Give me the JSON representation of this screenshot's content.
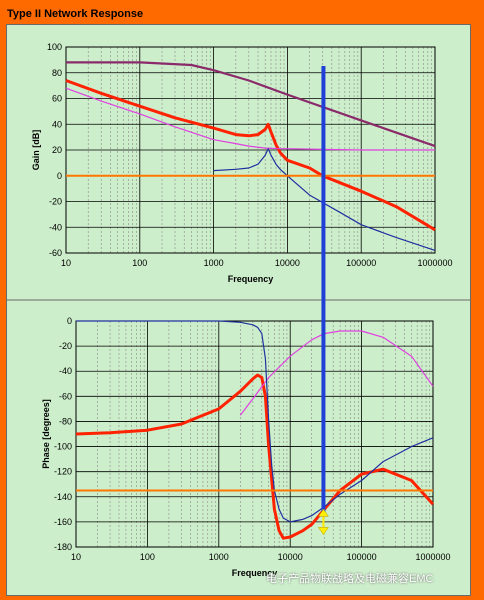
{
  "title": "Type II Network Response",
  "watermark": "电子产品物联战略及电磁兼容EMC",
  "colors": {
    "frame": "#ff6a00",
    "background": "#cdeecb",
    "grid_major": "#000000",
    "grid_minor": "#888888",
    "red": "#ff2200",
    "pink": "#e040e0",
    "navy": "#2030a0",
    "purple": "#8a2a6a",
    "orange_ref": "#ff7700",
    "cursor": "#1f3fd6",
    "arrow": "#ffee00"
  },
  "chart_data": [
    {
      "type": "line",
      "name": "gain",
      "xlabel": "Frequency",
      "ylabel": "Gain [dB]",
      "xscale": "log",
      "xlim": [
        10,
        1000000
      ],
      "ylim": [
        -60,
        100
      ],
      "x_ticks": [
        "10",
        "100",
        "1000",
        "10000",
        "100000",
        "1000000"
      ],
      "y_ticks": [
        "100",
        "80",
        "60",
        "40",
        "20",
        "0",
        "-20",
        "-40",
        "-60"
      ],
      "grid": true,
      "series": [
        {
          "color_key": "purple",
          "x": [
            10,
            100,
            500,
            1000,
            3000,
            10000,
            100000,
            1000000
          ],
          "y": [
            88,
            88,
            86,
            82,
            74,
            63,
            43,
            23
          ]
        },
        {
          "color_key": "red",
          "x": [
            10,
            30,
            100,
            300,
            1000,
            2000,
            3000,
            4000,
            5000,
            5500,
            6000,
            7000,
            8000,
            10000,
            20000,
            30000,
            100000,
            300000,
            1000000
          ],
          "y": [
            74,
            64,
            54,
            45,
            37,
            32,
            31,
            32,
            36,
            40,
            34,
            24,
            18,
            12,
            6,
            0,
            -12,
            -24,
            -42
          ]
        },
        {
          "color_key": "pink",
          "x": [
            10,
            30,
            100,
            300,
            1000,
            2000,
            3000,
            5000,
            8000,
            10000,
            30000,
            100000,
            1000000
          ],
          "y": [
            68,
            58,
            48,
            38,
            28,
            25,
            23,
            21.5,
            21,
            21,
            20.5,
            20,
            20
          ]
        },
        {
          "color_key": "navy",
          "x": [
            1000,
            2000,
            3000,
            4000,
            5000,
            5500,
            6000,
            7000,
            8000,
            10000,
            20000,
            50000,
            100000,
            300000,
            1000000
          ],
          "y": [
            4,
            5,
            6,
            9,
            16,
            21,
            16,
            9,
            5,
            0,
            -15,
            -28,
            -38,
            -48,
            -58
          ]
        },
        {
          "color_key": "orange_ref",
          "x": [
            10,
            1000000
          ],
          "y": [
            0,
            0
          ]
        }
      ]
    },
    {
      "type": "line",
      "name": "phase",
      "xlabel": "Frequency",
      "ylabel": "Phase [degrees]",
      "xscale": "log",
      "xlim": [
        10,
        1000000
      ],
      "ylim": [
        -180,
        0
      ],
      "x_ticks": [
        "10",
        "100",
        "1000",
        "10000",
        "100000",
        "1000000"
      ],
      "y_ticks": [
        "0",
        "-20",
        "-40",
        "-60",
        "-80",
        "-100",
        "-120",
        "-140",
        "-160",
        "-180"
      ],
      "grid": true,
      "series": [
        {
          "color_key": "red",
          "x": [
            10,
            30,
            100,
            300,
            1000,
            2000,
            3000,
            3500,
            4000,
            4500,
            5000,
            6000,
            7000,
            8000,
            10000,
            15000,
            20000,
            30000,
            50000,
            100000,
            200000,
            500000,
            1000000
          ],
          "y": [
            -90,
            -89,
            -87,
            -82,
            -70,
            -56,
            -46,
            -43,
            -45,
            -60,
            -100,
            -150,
            -167,
            -173,
            -172,
            -167,
            -162,
            -150,
            -135,
            -122,
            -118,
            -127,
            -146
          ]
        },
        {
          "color_key": "pink",
          "x": [
            2000,
            3000,
            5000,
            10000,
            20000,
            30000,
            50000,
            100000,
            200000,
            500000,
            1000000
          ],
          "y": [
            -75,
            -62,
            -45,
            -28,
            -15,
            -10,
            -8,
            -8,
            -13,
            -28,
            -52
          ]
        },
        {
          "color_key": "navy",
          "x": [
            10,
            1000,
            2000,
            3000,
            3500,
            4000,
            4500,
            5000,
            5500,
            6000,
            7000,
            8000,
            10000,
            15000,
            20000,
            30000,
            50000,
            100000,
            200000,
            500000,
            1000000
          ],
          "y": [
            0,
            0,
            -1,
            -3,
            -5,
            -10,
            -30,
            -80,
            -115,
            -135,
            -150,
            -157,
            -160,
            -158,
            -155,
            -148,
            -138,
            -127,
            -112,
            -100,
            -93
          ]
        },
        {
          "color_key": "orange_ref",
          "x": [
            10,
            1000000
          ],
          "y": [
            -135,
            -135
          ]
        }
      ]
    }
  ],
  "cursor": {
    "frequency": 30000
  }
}
